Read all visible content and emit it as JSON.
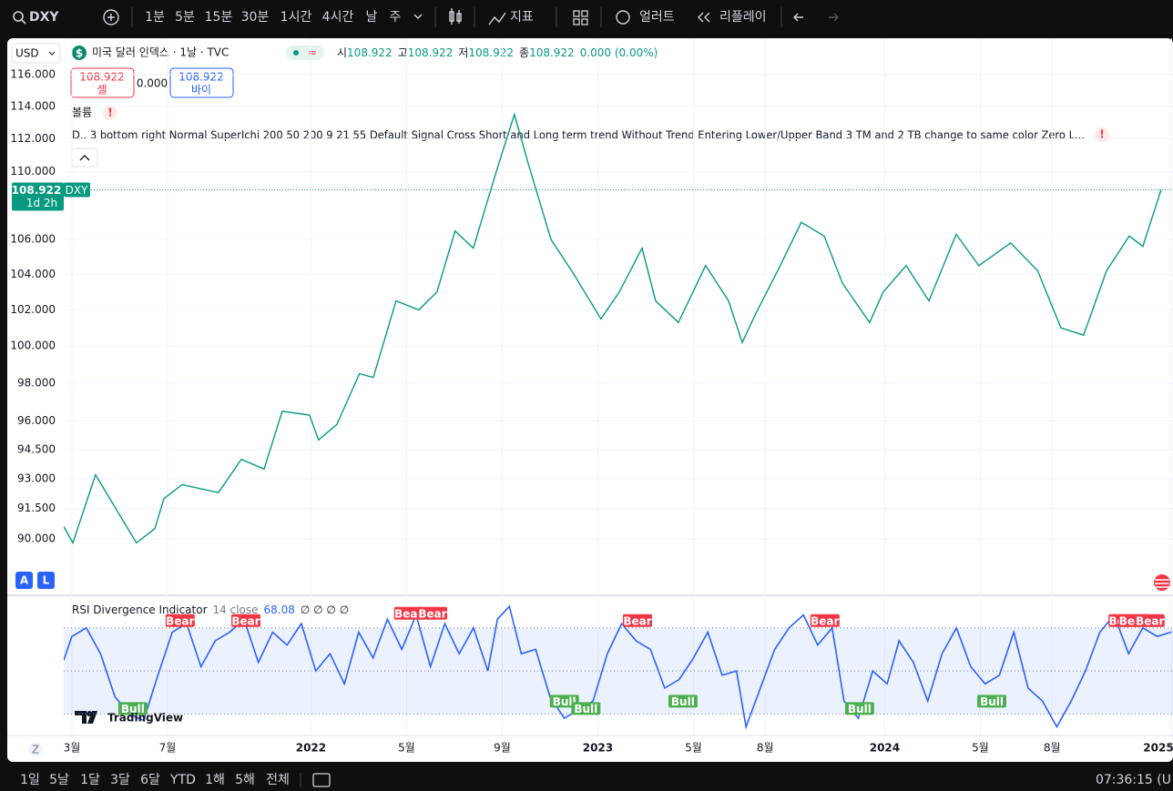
{
  "toolbar": {
    "symbol": "DXY",
    "intervals": [
      "1분",
      "5분",
      "15분",
      "30분",
      "1시간",
      "4시간",
      "날",
      "주"
    ],
    "tools": [
      "지표",
      "얼러트",
      "리플레이"
    ]
  },
  "header": {
    "currency": "USD",
    "title": "미국 달러 인덱스 · 1날 · TVC",
    "ohlc": [
      {
        "label": "시",
        "value": "108.922"
      },
      {
        "label": "고",
        "value": "108.922"
      },
      {
        "label": "저",
        "value": "108.922"
      },
      {
        "label": "종",
        "value": "108.922"
      }
    ],
    "change": "0.000 (0.00%)"
  },
  "trade": {
    "sell_price": "108.922",
    "sell_label": "셀",
    "spread": "0.000",
    "buy_price": "108.922",
    "buy_label": "바이"
  },
  "volume_label": "볼륨",
  "indicator_text": "D.. 3 bottom right Normal SuperIchi 200 50 200 9 21 55 Default Signal Cross Short and Long term trend Without Trend Entering Lower/Upper Band 3 TM and 2 TB change to same color Zero L...",
  "price_chart": {
    "type": "line",
    "log_scale": true,
    "color": "#089981",
    "x": [
      1.66,
      2.04,
      2.99,
      3.94,
      4.7,
      5.47,
      5.85,
      6.61,
      8.13,
      9.09,
      10.04,
      10.8,
      11.94,
      12.32,
      13.08,
      14.03,
      14.61,
      15.56,
      16.51,
      17.27,
      18.03,
      18.79,
      19.75,
      20.51,
      21.09,
      22.04,
      23.0,
      24.13,
      24.9,
      25.85,
      26.42,
      27.37,
      28.51,
      29.47,
      30.04,
      30.61,
      31.56,
      32.51,
      33.47,
      34.23,
      35.37,
      35.94,
      36.9,
      37.85,
      38.99,
      39.94,
      41.27,
      42.4,
      43.37,
      44.32,
      45.28,
      46.23,
      46.8,
      47.56
    ],
    "values": [
      90.6,
      89.8,
      93.2,
      91.3,
      89.8,
      90.5,
      92,
      92.7,
      92.3,
      94,
      93.5,
      96.5,
      96.3,
      95,
      95.8,
      98.5,
      98.3,
      102.5,
      102,
      103,
      106.5,
      105.5,
      110,
      113.5,
      110.5,
      106,
      104,
      101.5,
      103,
      105.5,
      102.5,
      101.3,
      104.5,
      102.5,
      100.2,
      101.8,
      104.3,
      107,
      106.2,
      103.5,
      101.3,
      103,
      104.5,
      102.5,
      106.3,
      104.5,
      105.8,
      104.2,
      101,
      100.6,
      104.2,
      106.2,
      105.6,
      108.922
    ],
    "xlim": [
      1.66,
      48.06
    ],
    "ylim": [
      87.35,
      118.33
    ],
    "yticks": [
      {
        "value": 116,
        "label": "116.000"
      },
      {
        "value": 114,
        "label": "114.000"
      },
      {
        "value": 112,
        "label": "112.000"
      },
      {
        "value": 110,
        "label": "110.000"
      },
      {
        "value": 106,
        "label": "106.000"
      },
      {
        "value": 104,
        "label": "104.000"
      },
      {
        "value": 102,
        "label": "102.000"
      },
      {
        "value": 100,
        "label": "100.000"
      },
      {
        "value": 98,
        "label": "98.000"
      },
      {
        "value": 96,
        "label": "96.000"
      },
      {
        "value": 94.5,
        "label": "94.500"
      },
      {
        "value": 93,
        "label": "93.000"
      },
      {
        "value": 91.5,
        "label": "91.500"
      },
      {
        "value": 90,
        "label": "90.000"
      }
    ],
    "xticks": [
      {
        "value": 2,
        "label": "3월"
      },
      {
        "value": 6,
        "label": "7월"
      },
      {
        "value": 12,
        "label": "2022"
      },
      {
        "value": 16,
        "label": "5월"
      },
      {
        "value": 20,
        "label": "9월"
      },
      {
        "value": 24,
        "label": "2023"
      },
      {
        "value": 28,
        "label": "5월"
      },
      {
        "value": 31,
        "label": "8월"
      },
      {
        "value": 36,
        "label": "2024"
      },
      {
        "value": 40,
        "label": "5월"
      },
      {
        "value": 43,
        "label": "8월"
      },
      {
        "value": 48,
        "label": "2025"
      }
    ],
    "last_price": {
      "value": 108.922,
      "label": "108.922"
    },
    "symbol_tag": "DXY",
    "countdown": "1d 2h"
  },
  "rsi": {
    "type": "line",
    "title": "RSI Divergence Indicator",
    "params": "14 close",
    "value": "68.08",
    "empty_values": "∅ ∅ ∅ ∅",
    "color": "#2962ff",
    "x": [
      1.66,
      2,
      2.6,
      3.2,
      3.8,
      4.4,
      5,
      5.6,
      6.2,
      6.8,
      7.4,
      8,
      8.6,
      9.2,
      9.8,
      10.4,
      11,
      11.6,
      12.2,
      12.8,
      13.4,
      14,
      14.6,
      15.2,
      15.8,
      16.4,
      17,
      17.6,
      18.2,
      18.8,
      19.4,
      19.8,
      20.3,
      20.8,
      21.4,
      22,
      22.6,
      23.2,
      23.8,
      24.4,
      25,
      25.6,
      26.2,
      26.8,
      27.4,
      28,
      28.6,
      29.2,
      29.8,
      30.2,
      30.8,
      31.4,
      32,
      32.6,
      33.2,
      33.8,
      34.3,
      34.9,
      35.5,
      36.1,
      36.6,
      37.2,
      37.8,
      38.4,
      39,
      39.6,
      40.2,
      40.8,
      41.4,
      42,
      42.6,
      43.2,
      43.8,
      44.4,
      45,
      45.6,
      46.2,
      46.8,
      47.4,
      48
    ],
    "values": [
      55,
      66,
      70,
      58,
      38,
      30,
      27,
      48,
      68,
      72,
      52,
      64,
      68,
      74,
      54,
      68,
      62,
      72,
      50,
      58,
      44,
      68,
      56,
      74,
      60,
      76,
      52,
      72,
      58,
      70,
      50,
      74,
      80,
      58,
      60,
      38,
      28,
      32,
      36,
      58,
      72,
      64,
      60,
      42,
      46,
      56,
      68,
      48,
      50,
      24,
      42,
      60,
      70,
      76,
      62,
      70,
      36,
      28,
      50,
      44,
      64,
      54,
      36,
      58,
      70,
      52,
      44,
      48,
      68,
      42,
      36,
      24,
      36,
      50,
      68,
      76,
      58,
      70,
      66,
      68.08
    ],
    "ylim": [
      20,
      84.3
    ],
    "levels": [
      70,
      50,
      30
    ],
    "signals": [
      {
        "x": 6.53,
        "label": "Bear"
      },
      {
        "x": 9.28,
        "label": "Bear"
      },
      {
        "x": 16.09,
        "label": "Bear"
      },
      {
        "x": 17.09,
        "label": "Bear"
      },
      {
        "x": 25.66,
        "label": "Bear"
      },
      {
        "x": 33.5,
        "label": "Bear"
      },
      {
        "x": 45.97,
        "label": "Bear"
      },
      {
        "x": 46.4,
        "label": "Bear"
      },
      {
        "x": 47.1,
        "label": "Bear"
      },
      {
        "x": 4.55,
        "label": "Bull"
      },
      {
        "x": 22.6,
        "label": "Bull"
      },
      {
        "x": 23.5,
        "label": "Bull"
      },
      {
        "x": 27.56,
        "label": "Bull"
      },
      {
        "x": 34.95,
        "label": "Bull"
      },
      {
        "x": 40.48,
        "label": "Bull"
      }
    ]
  },
  "scale_buttons": [
    "A",
    "L"
  ],
  "zoom_label": "Z",
  "logo": "TradingView",
  "range_buttons": [
    "1일",
    "5날",
    "1달",
    "3달",
    "6달",
    "YTD",
    "1해",
    "5해",
    "전체"
  ],
  "clock": "07:36:15 (U"
}
